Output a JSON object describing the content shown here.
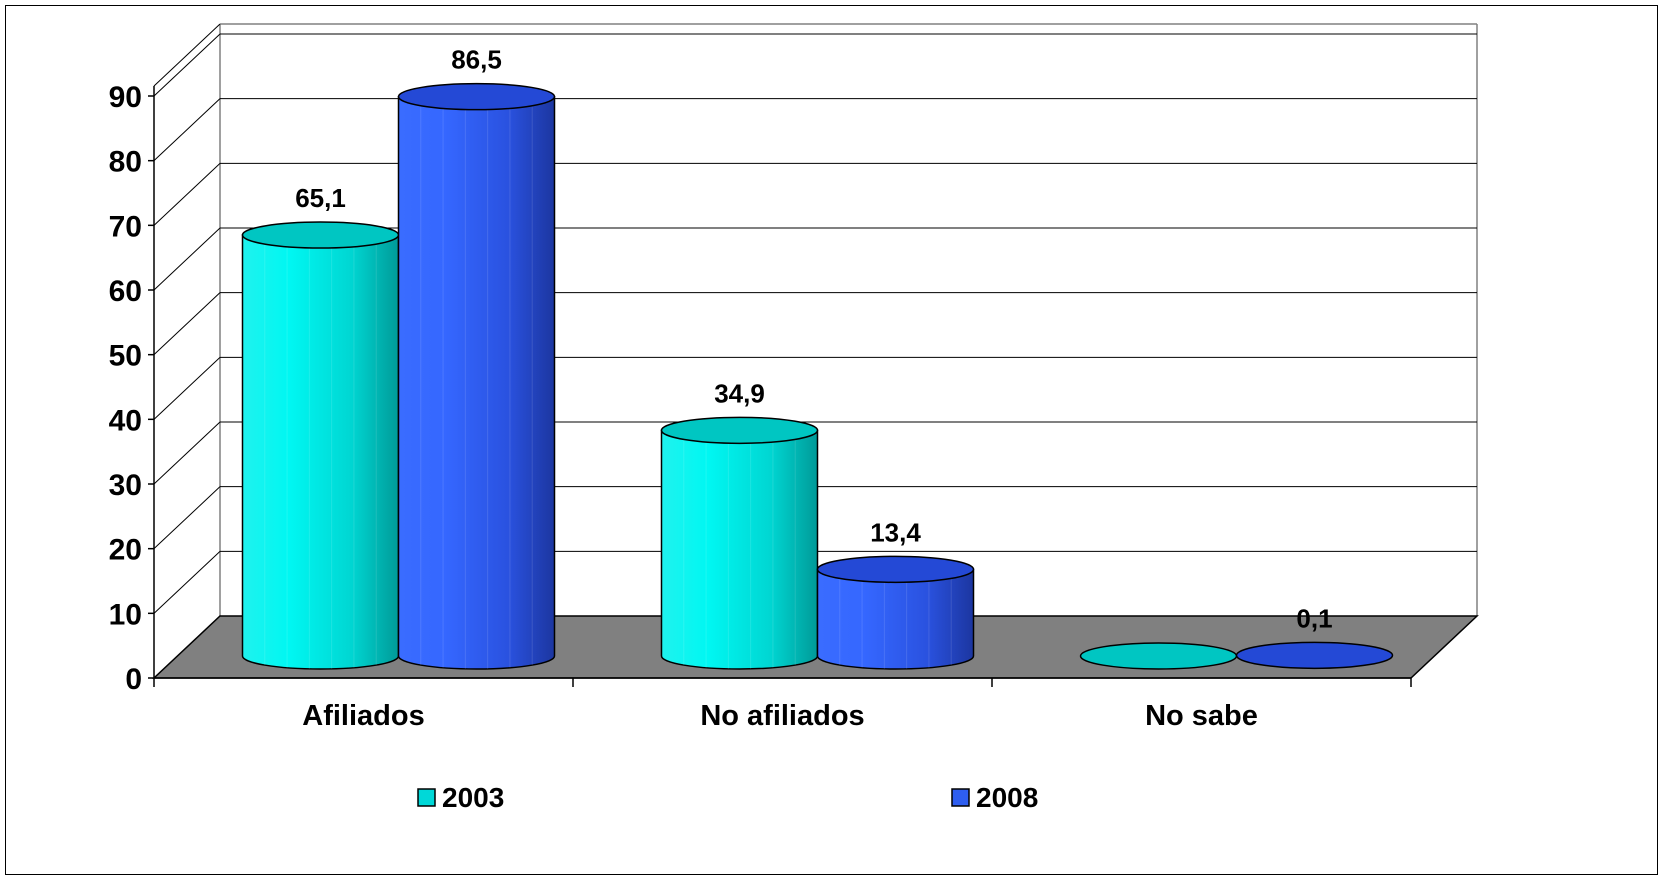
{
  "chart_data": {
    "type": "bar",
    "style": "3d-cylinder",
    "categories": [
      "Afiliados",
      "No afiliados",
      "No sabe"
    ],
    "series": [
      {
        "name": "2003",
        "values": [
          65.1,
          34.9,
          0
        ],
        "labels": [
          "65,1",
          "34,9",
          ""
        ],
        "color": "#00d8d8"
      },
      {
        "name": "2008",
        "values": [
          86.5,
          13.4,
          0.1
        ],
        "labels": [
          "86,5",
          "13,4",
          "0,1"
        ],
        "color": "#2e5ef0"
      }
    ],
    "yticks": [
      "0",
      "10",
      "20",
      "30",
      "40",
      "50",
      "60",
      "70",
      "80",
      "90"
    ],
    "ylim": [
      0,
      90
    ],
    "grid": true,
    "floor_color": "#808080",
    "legend_position": "bottom"
  }
}
